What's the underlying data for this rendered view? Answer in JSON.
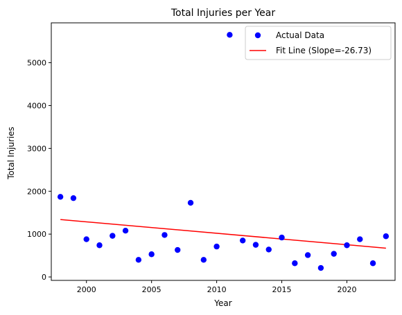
{
  "chart_data": {
    "type": "scatter",
    "title": "Total Injuries per Year",
    "xlabel": "Year",
    "ylabel": "Total Injuries",
    "xlim": [
      1997.3,
      2023.7
    ],
    "ylim": [
      -80,
      5930
    ],
    "x_ticks": [
      2000,
      2005,
      2010,
      2015,
      2020
    ],
    "y_ticks": [
      0,
      1000,
      2000,
      3000,
      4000,
      5000
    ],
    "grid": false,
    "legend_position": "top-right",
    "series": [
      {
        "name": "Actual Data",
        "kind": "scatter",
        "color": "#0000ff",
        "x": [
          1998,
          1999,
          2000,
          2001,
          2002,
          2003,
          2004,
          2005,
          2006,
          2007,
          2008,
          2009,
          2010,
          2011,
          2012,
          2013,
          2014,
          2015,
          2016,
          2017,
          2018,
          2019,
          2020,
          2021,
          2022,
          2023
        ],
        "y": [
          1870,
          1840,
          880,
          740,
          960,
          1080,
          400,
          530,
          980,
          630,
          1730,
          400,
          710,
          5650,
          850,
          750,
          640,
          920,
          320,
          510,
          210,
          540,
          740,
          880,
          320,
          950
        ]
      },
      {
        "name": "Fit Line (Slope=-26.73)",
        "kind": "line",
        "color": "#ff0000",
        "x": [
          1998,
          2023
        ],
        "y": [
          1340,
          672
        ]
      }
    ]
  }
}
